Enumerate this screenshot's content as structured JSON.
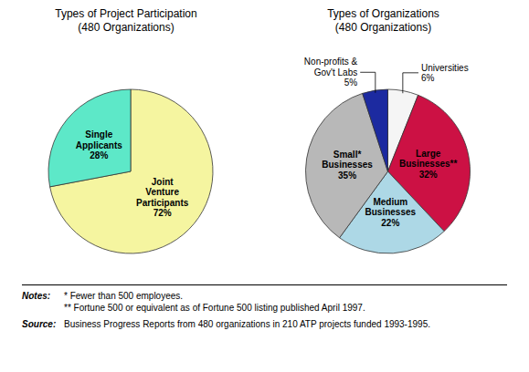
{
  "chart_data": [
    {
      "type": "pie",
      "title": "Types of Project Participation",
      "subtitle": "(480 Organizations)",
      "categories": [
        "Joint Venture Participants",
        "Single Applicants"
      ],
      "values": [
        72,
        28
      ],
      "value_labels": [
        "72%",
        "28%"
      ],
      "colors": [
        "#f5f5a0",
        "#5de8c8"
      ]
    },
    {
      "type": "pie",
      "title": "Types of Organizations",
      "subtitle": "(480 Organizations)",
      "categories": [
        "Universities",
        "Large Businesses**",
        "Medium Businesses",
        "Small* Businesses",
        "Non-profits & Gov't Labs"
      ],
      "values": [
        6,
        32,
        22,
        35,
        5
      ],
      "value_labels": [
        "6%",
        "32%",
        "22%",
        "35%",
        "5%"
      ],
      "colors": [
        "#f5f5f5",
        "#cc1144",
        "#add8e6",
        "#b8b8b8",
        "#1c2aa0"
      ]
    }
  ],
  "annotations": [
    {
      "label": "Notes:",
      "text": [
        "* Fewer than 500 employees.",
        "** Fortune 500 or equivalent as of Fortune 500 listing published April 1997."
      ]
    },
    {
      "label": "Source:",
      "text": [
        "Business Progress Reports from 480 organizations in 210 ATP projects funded 1993-1995."
      ]
    }
  ]
}
